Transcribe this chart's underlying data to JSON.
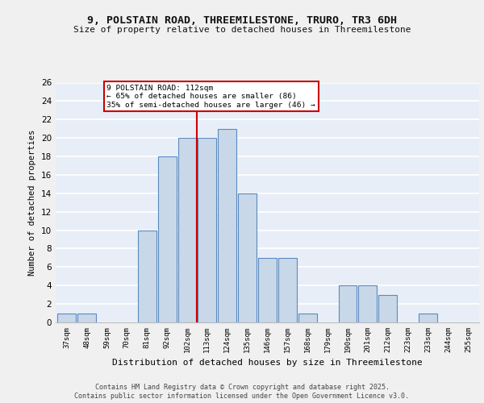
{
  "title": "9, POLSTAIN ROAD, THREEMILESTONE, TRURO, TR3 6DH",
  "subtitle": "Size of property relative to detached houses in Threemilestone",
  "xlabel": "Distribution of detached houses by size in Threemilestone",
  "ylabel": "Number of detached properties",
  "bar_color": "#c8d8e8",
  "bar_edge_color": "#5a8abf",
  "background_color": "#e8eef8",
  "grid_color": "#ffffff",
  "vline_x": 6.5,
  "vline_color": "#cc0000",
  "annotation_line1": "9 POLSTAIN ROAD: 112sqm",
  "annotation_line2": "← 65% of detached houses are smaller (86)",
  "annotation_line3": "35% of semi-detached houses are larger (46) →",
  "annotation_box_color": "#cc0000",
  "bin_labels": [
    "37sqm",
    "48sqm",
    "59sqm",
    "70sqm",
    "81sqm",
    "92sqm",
    "102sqm",
    "113sqm",
    "124sqm",
    "135sqm",
    "146sqm",
    "157sqm",
    "168sqm",
    "179sqm",
    "190sqm",
    "201sqm",
    "212sqm",
    "223sqm",
    "233sqm",
    "244sqm",
    "255sqm"
  ],
  "counts": [
    1,
    1,
    0,
    0,
    10,
    18,
    20,
    20,
    21,
    14,
    7,
    7,
    1,
    0,
    4,
    4,
    3,
    0,
    1,
    0,
    0
  ],
  "ylim": [
    0,
    26
  ],
  "yticks": [
    0,
    2,
    4,
    6,
    8,
    10,
    12,
    14,
    16,
    18,
    20,
    22,
    24,
    26
  ],
  "fig_bg": "#f0f0f0",
  "footer_line1": "Contains HM Land Registry data © Crown copyright and database right 2025.",
  "footer_line2": "Contains public sector information licensed under the Open Government Licence v3.0."
}
